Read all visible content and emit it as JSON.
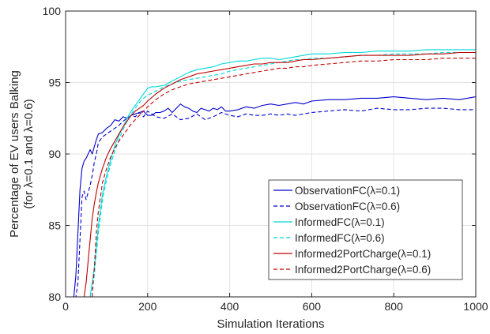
{
  "chart_data": {
    "type": "line",
    "xlabel": "Simulation Iterations",
    "ylabel": [
      "Percentage of EV users Balking",
      "(for λ=0.1 and λ=0.6)"
    ],
    "xlim": [
      0,
      1000
    ],
    "ylim": [
      80,
      100
    ],
    "xticks": [
      0,
      200,
      400,
      600,
      800,
      1000
    ],
    "yticks": [
      80,
      85,
      90,
      95,
      100
    ],
    "grid": true,
    "legend_position": "lower-right",
    "series": [
      {
        "name": "ObservationFC(λ=0.1)",
        "color": "#0000cc",
        "dash": "solid",
        "x": [
          20,
          25,
          30,
          35,
          40,
          45,
          50,
          55,
          60,
          65,
          70,
          75,
          80,
          90,
          100,
          110,
          120,
          130,
          140,
          150,
          160,
          170,
          180,
          190,
          200,
          210,
          220,
          230,
          240,
          250,
          260,
          270,
          280,
          290,
          300,
          310,
          320,
          330,
          340,
          350,
          360,
          370,
          380,
          390,
          400,
          420,
          440,
          460,
          480,
          500,
          520,
          540,
          560,
          580,
          600,
          640,
          680,
          720,
          760,
          800,
          840,
          880,
          920,
          960,
          1000
        ],
        "y": [
          80.0,
          81.5,
          84.5,
          87.5,
          89.0,
          89.5,
          89.7,
          90.0,
          90.3,
          90.0,
          90.5,
          91.0,
          91.4,
          91.5,
          91.8,
          92.0,
          92.4,
          92.3,
          92.6,
          92.5,
          92.7,
          92.8,
          92.9,
          93.0,
          92.7,
          92.7,
          92.9,
          92.9,
          93.0,
          93.2,
          92.9,
          93.2,
          93.5,
          93.3,
          93.2,
          93.0,
          92.9,
          93.2,
          93.1,
          93.0,
          93.2,
          93.1,
          93.3,
          93.0,
          93.0,
          93.1,
          93.3,
          93.2,
          93.4,
          93.5,
          93.4,
          93.5,
          93.6,
          93.5,
          93.7,
          93.8,
          93.8,
          93.9,
          93.9,
          94.0,
          93.9,
          93.8,
          93.9,
          93.8,
          94.0
        ]
      },
      {
        "name": "ObservationFC(λ=0.6)",
        "color": "#0000cc",
        "dash": "dashed",
        "x": [
          20,
          25,
          30,
          35,
          40,
          45,
          50,
          55,
          60,
          65,
          70,
          75,
          80,
          90,
          100,
          110,
          120,
          130,
          140,
          150,
          160,
          170,
          180,
          190,
          200,
          220,
          240,
          260,
          280,
          300,
          320,
          340,
          360,
          380,
          400,
          420,
          440,
          460,
          480,
          500,
          520,
          540,
          560,
          580,
          600,
          640,
          680,
          720,
          760,
          800,
          840,
          880,
          920,
          960,
          1000
        ],
        "y": [
          80.0,
          80.0,
          81.0,
          84.0,
          87.0,
          87.4,
          86.8,
          87.3,
          87.8,
          88.5,
          89.4,
          90.0,
          90.8,
          91.2,
          91.4,
          91.6,
          91.8,
          92.0,
          92.3,
          92.5,
          92.7,
          92.6,
          92.9,
          92.6,
          93.0,
          92.6,
          92.5,
          92.8,
          92.4,
          92.5,
          92.8,
          92.4,
          92.6,
          92.9,
          92.7,
          92.6,
          92.8,
          92.7,
          92.7,
          92.8,
          92.7,
          92.8,
          92.7,
          92.8,
          92.9,
          93.0,
          93.1,
          93.0,
          93.2,
          93.1,
          93.1,
          93.2,
          93.2,
          93.1,
          93.1
        ]
      },
      {
        "name": "InformedFC(λ=0.1)",
        "color": "#00d8d8",
        "dash": "solid",
        "x": [
          60,
          70,
          80,
          90,
          100,
          110,
          120,
          130,
          140,
          150,
          160,
          170,
          180,
          190,
          200,
          210,
          220,
          240,
          260,
          280,
          300,
          320,
          340,
          360,
          380,
          400,
          420,
          440,
          460,
          480,
          500,
          520,
          540,
          560,
          580,
          600,
          640,
          680,
          720,
          760,
          800,
          840,
          880,
          920,
          960,
          1000
        ],
        "y": [
          80.0,
          82.0,
          85.0,
          87.2,
          88.5,
          89.6,
          90.6,
          91.3,
          91.9,
          92.5,
          93.0,
          93.4,
          93.8,
          94.2,
          94.6,
          94.7,
          94.7,
          94.8,
          95.1,
          95.4,
          95.7,
          95.9,
          96.0,
          96.1,
          96.3,
          96.4,
          96.5,
          96.5,
          96.6,
          96.7,
          96.7,
          96.6,
          96.7,
          96.8,
          96.9,
          97.0,
          97.0,
          97.1,
          97.1,
          97.2,
          97.2,
          97.2,
          97.3,
          97.3,
          97.3,
          97.3
        ]
      },
      {
        "name": "InformedFC(λ=0.6)",
        "color": "#00d8d8",
        "dash": "dashed",
        "x": [
          60,
          70,
          80,
          90,
          100,
          110,
          120,
          130,
          140,
          150,
          160,
          170,
          180,
          190,
          200,
          220,
          240,
          260,
          280,
          300,
          320,
          340,
          360,
          380,
          400,
          420,
          440,
          460,
          480,
          500,
          520,
          540,
          560,
          580,
          600,
          640,
          680,
          720,
          760,
          800,
          840,
          880,
          920,
          960,
          1000
        ],
        "y": [
          80.0,
          81.5,
          84.5,
          86.8,
          88.2,
          89.3,
          90.2,
          91.0,
          91.7,
          92.3,
          92.8,
          93.2,
          93.6,
          93.9,
          94.1,
          94.4,
          94.7,
          94.9,
          95.1,
          95.2,
          95.3,
          95.4,
          95.5,
          95.6,
          95.8,
          95.9,
          96.0,
          96.1,
          96.2,
          96.3,
          96.4,
          96.5,
          96.6,
          96.6,
          96.7,
          96.7,
          96.8,
          96.9,
          96.9,
          97.0,
          97.0,
          97.0,
          97.1,
          97.1,
          97.1
        ]
      },
      {
        "name": "Informed2PortCharge(λ=0.1)",
        "color": "#c00000",
        "dash": "solid",
        "x": [
          45,
          50,
          55,
          60,
          65,
          70,
          75,
          80,
          90,
          100,
          110,
          120,
          130,
          140,
          150,
          160,
          170,
          180,
          190,
          200,
          220,
          240,
          260,
          280,
          300,
          320,
          340,
          360,
          380,
          400,
          420,
          440,
          460,
          480,
          500,
          520,
          540,
          560,
          580,
          600,
          640,
          680,
          720,
          760,
          800,
          840,
          880,
          920,
          960,
          1000
        ],
        "y": [
          80.0,
          81.0,
          82.5,
          84.0,
          85.5,
          86.5,
          87.3,
          88.0,
          89.0,
          89.8,
          90.4,
          90.9,
          91.4,
          91.9,
          92.3,
          92.7,
          93.0,
          93.2,
          93.4,
          93.7,
          94.2,
          94.6,
          94.9,
          95.2,
          95.4,
          95.6,
          95.7,
          95.8,
          95.9,
          96.0,
          96.1,
          96.2,
          96.3,
          96.3,
          96.4,
          96.4,
          96.4,
          96.5,
          96.6,
          96.6,
          96.7,
          96.8,
          96.9,
          96.9,
          96.9,
          96.9,
          97.0,
          97.0,
          97.1,
          97.1
        ]
      },
      {
        "name": "Informed2PortCharge(λ=0.6)",
        "color": "#c00000",
        "dash": "dashed",
        "x": [
          65,
          70,
          75,
          80,
          90,
          100,
          110,
          120,
          130,
          140,
          150,
          160,
          170,
          180,
          190,
          200,
          220,
          240,
          260,
          280,
          300,
          320,
          340,
          360,
          380,
          400,
          420,
          440,
          460,
          480,
          500,
          520,
          540,
          560,
          580,
          600,
          640,
          680,
          720,
          760,
          800,
          840,
          880,
          920,
          960,
          1000
        ],
        "y": [
          80.0,
          82.0,
          84.5,
          86.0,
          88.0,
          89.0,
          89.8,
          90.4,
          90.9,
          91.3,
          91.7,
          92.1,
          92.4,
          92.7,
          93.0,
          93.3,
          93.8,
          94.2,
          94.5,
          94.7,
          94.9,
          95.0,
          95.1,
          95.2,
          95.3,
          95.4,
          95.5,
          95.6,
          95.7,
          95.8,
          95.9,
          96.0,
          96.0,
          96.1,
          96.1,
          96.2,
          96.3,
          96.4,
          96.5,
          96.5,
          96.6,
          96.6,
          96.6,
          96.7,
          96.7,
          96.7
        ]
      }
    ]
  }
}
